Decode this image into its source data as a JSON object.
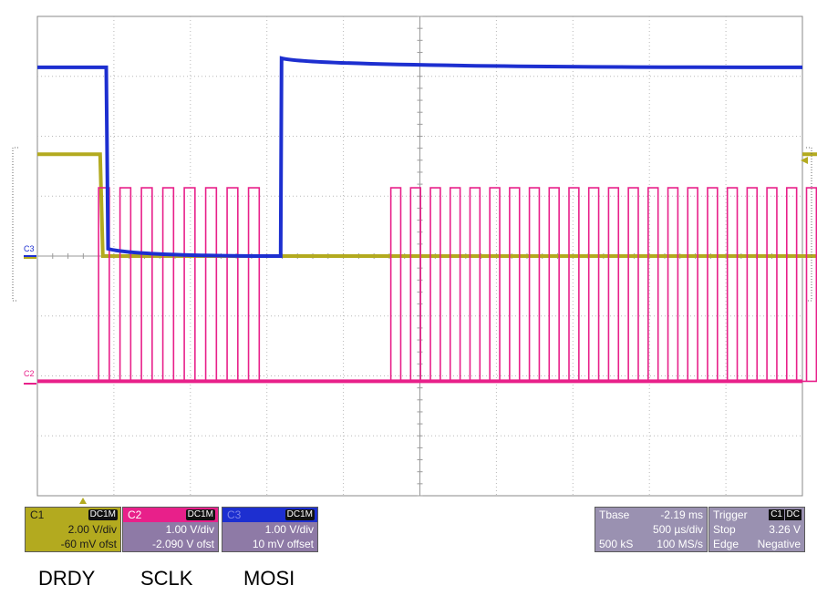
{
  "chart_data": {
    "type": "line",
    "grid": true,
    "x_divisions": 10,
    "y_divisions": 8,
    "series": [
      {
        "name": "C1",
        "color": "#b3aa1f",
        "v_per_div": 2.0,
        "offset": "-60 mV ofst",
        "levels_div": {
          "high": 1.7,
          "low": 0
        },
        "edges_div": [
          -4.18,
          5.68
        ]
      },
      {
        "name": "C2",
        "color": "#e8208a",
        "v_per_div": 1.0,
        "offset": "-2.090 V ofst",
        "levels_div": {
          "high": 1.14,
          "low": -2.09
        },
        "bursts": [
          {
            "start": -4.2,
            "end": -1.96,
            "pulses": 8
          },
          {
            "start": -0.38,
            "end": 5.83,
            "pulses": 24
          }
        ]
      },
      {
        "name": "C3",
        "color": "#1d2fd0",
        "v_per_div": 1.0,
        "offset": "10 mV offset",
        "levels_div": {
          "high": 3.15,
          "low": 0
        },
        "edges_div": [
          -4.1,
          -1.82
        ]
      }
    ]
  },
  "markers": {
    "c3": "C3",
    "c2": "C2"
  },
  "panels": {
    "c1": {
      "name": "C1",
      "coupling": "DC1M",
      "scale": "2.00 V/div",
      "offset": "-60 mV ofst"
    },
    "c2": {
      "name": "C2",
      "coupling": "DC1M",
      "scale": "1.00 V/div",
      "offset": "-2.090 V ofst"
    },
    "c3": {
      "name": "C3",
      "coupling": "DC1M",
      "scale": "1.00 V/div",
      "offset": "10 mV offset"
    },
    "tbase": {
      "label": "Tbase",
      "delay": "-2.19 ms",
      "per_div": "500 µs/div",
      "samples": "500 kS",
      "rate": "100 MS/s"
    },
    "trigger": {
      "label": "Trigger",
      "source": "C1",
      "coupling": "DC",
      "mode": "Stop",
      "level": "3.26 V",
      "type": "Edge",
      "slope": "Negative"
    }
  },
  "labels": {
    "drdy": "DRDY",
    "sclk": "SCLK",
    "mosi": "MOSI"
  }
}
